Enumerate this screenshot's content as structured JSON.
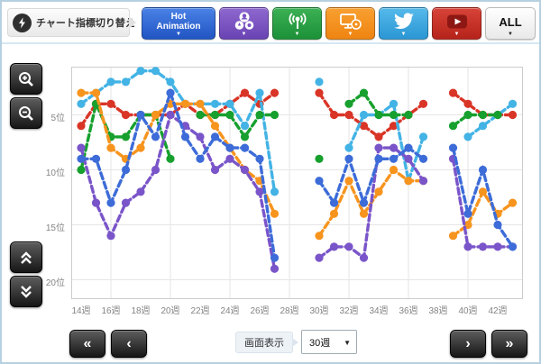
{
  "icons": {
    "caret_down": "▼"
  },
  "toolbar": {
    "title": "チャート指標切り替え",
    "hot_line1": "Hot",
    "hot_line2": "Animation",
    "all_label": "ALL",
    "button_colors": {
      "hot_animation": "#2f62cf",
      "group": "#7a52c2",
      "broadcast": "#2aa046",
      "media": "#f4911e",
      "twitter": "#3fa8de",
      "youtube": "#c73128",
      "all": "#f4f4f4"
    }
  },
  "side_controls": {
    "zoom_in": "zoom-in",
    "zoom_out": "zoom-out",
    "scroll_up": "scroll-up",
    "scroll_down": "scroll-down"
  },
  "bottom": {
    "display_label": "画面表示",
    "window_value": "30週",
    "nav": {
      "first": "«",
      "prev": "‹",
      "next": "›",
      "last": "»"
    }
  },
  "chart_data": {
    "type": "line",
    "title": "",
    "xlabel": "week",
    "ylabel": "rank (1 = top)",
    "ylim": [
      1,
      21
    ],
    "y_inverted": true,
    "grid": true,
    "x_weeks": [
      14,
      15,
      16,
      17,
      18,
      19,
      20,
      21,
      22,
      23,
      24,
      25,
      26,
      27,
      28,
      29,
      30,
      31,
      32,
      33,
      34,
      35,
      36,
      37,
      38,
      39,
      40,
      41,
      42,
      43
    ],
    "x_tick_weeks": [
      14,
      16,
      18,
      20,
      22,
      24,
      26,
      28,
      30,
      32,
      34,
      36,
      38,
      40,
      42
    ],
    "x_tick_labels": [
      "14週",
      "16週",
      "18週",
      "20週",
      "22週",
      "24週",
      "26週",
      "28週",
      "30週",
      "32週",
      "34週",
      "36週",
      "38週",
      "40週",
      "42週"
    ],
    "grid_weeks": [
      16,
      20,
      24,
      28,
      32,
      36,
      40
    ],
    "y_tick_ranks": [
      5,
      10,
      15,
      20
    ],
    "y_tick_labels": [
      "5位",
      "10位",
      "15位",
      "20位"
    ],
    "note": "null = no data (gaps at weeks 28-29 and 38); ranks estimated from pixels",
    "series": [
      {
        "name": "red",
        "color": "#d93527",
        "values": [
          6,
          4,
          4,
          5,
          5,
          5,
          5,
          4,
          5,
          5,
          4,
          3,
          4,
          3,
          null,
          null,
          3,
          5,
          5,
          6,
          7,
          6,
          5,
          4,
          null,
          3,
          4,
          5,
          5,
          5
        ]
      },
      {
        "name": "sky-blue",
        "color": "#43b3e5",
        "values": [
          4,
          3,
          2,
          2,
          1,
          1,
          2,
          4,
          4,
          4,
          4,
          6,
          3,
          12,
          null,
          null,
          2,
          null,
          8,
          5,
          5,
          4,
          11,
          7,
          null,
          null,
          7,
          6,
          5,
          4
        ]
      },
      {
        "name": "green",
        "color": "#17a02e",
        "values": [
          10,
          4,
          7,
          7,
          5,
          5,
          9,
          null,
          5,
          5,
          5,
          7,
          5,
          5,
          null,
          null,
          9,
          null,
          4,
          3,
          5,
          5,
          5,
          null,
          null,
          6,
          5,
          5,
          5,
          null
        ]
      },
      {
        "name": "orange",
        "color": "#f7941e",
        "values": [
          3,
          3,
          8,
          9,
          8,
          5,
          4,
          4,
          4,
          6,
          8,
          10,
          11,
          14,
          null,
          null,
          16,
          14,
          11,
          14,
          12,
          10,
          11,
          11,
          null,
          16,
          15,
          12,
          14,
          13
        ]
      },
      {
        "name": "purple",
        "color": "#7a55c9",
        "values": [
          8,
          13,
          16,
          13,
          12,
          10,
          5,
          6,
          7,
          10,
          9,
          10,
          12,
          19,
          null,
          null,
          18,
          17,
          17,
          18,
          8,
          8,
          9,
          11,
          null,
          9,
          17,
          17,
          17,
          17
        ]
      },
      {
        "name": "blue",
        "color": "#3d6cd8",
        "values": [
          9,
          9,
          13,
          10,
          5,
          7,
          3,
          7,
          9,
          7,
          8,
          8,
          9,
          18,
          null,
          null,
          11,
          13,
          9,
          13,
          9,
          9,
          8,
          9,
          null,
          8,
          14,
          10,
          15,
          17
        ]
      }
    ]
  }
}
